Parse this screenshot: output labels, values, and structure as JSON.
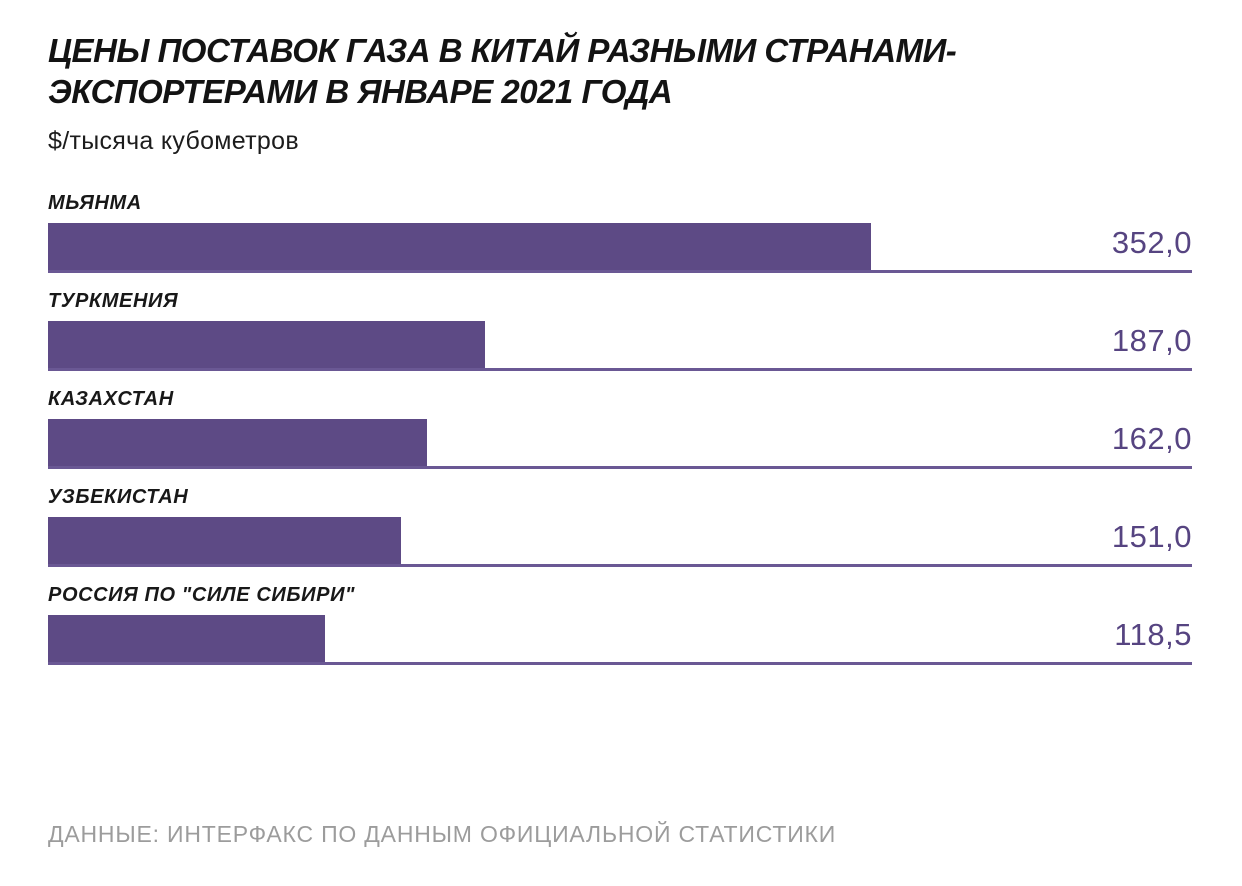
{
  "header": {
    "title": "ЦЕНЫ ПОСТАВОК ГАЗА В КИТАЙ РАЗНЫМИ СТРАНАМИ-ЭКСПОРТЕРАМИ В ЯНВАРЕ 2021 ГОДА",
    "unit_label": "$/тысяча кубометров"
  },
  "footer": {
    "source": "ДАННЫЕ: ИНТЕРФАКС ПО ДАННЫМ ОФИЦИАЛЬНОЙ СТАТИСТИКИ"
  },
  "chart_data": {
    "type": "bar",
    "orientation": "horizontal",
    "title": "ЦЕНЫ ПОСТАВОК ГАЗА В КИТАЙ РАЗНЫМИ СТРАНАМИ-ЭКСПОРТЕРАМИ В ЯНВАРЕ 2021 ГОДА",
    "ylabel": "",
    "xlabel": "$/тысяча кубометров",
    "categories": [
      "МЬЯНМА",
      "ТУРКМЕНИЯ",
      "КАЗАХСТАН",
      "УЗБЕКИСТАН",
      "РОССИЯ ПО \"СИЛЕ СИБИРИ\""
    ],
    "values": [
      352.0,
      187.0,
      162.0,
      151.0,
      118.5
    ],
    "value_labels": [
      "352,0",
      "187,0",
      "162,0",
      "151,0",
      "118,5"
    ],
    "xlim": [
      0,
      489
    ],
    "grid": false,
    "legend": false,
    "value_label_position": "right-aligned-above-baseline",
    "bar_color": "#5d4a85",
    "value_color": "#564481",
    "baseline_color": "#6a5894",
    "source": "ДАННЫЕ: ИНТЕРФАКС ПО ДАННЫМ ОФИЦИАЛЬНОЙ СТАТИСТИКИ"
  }
}
